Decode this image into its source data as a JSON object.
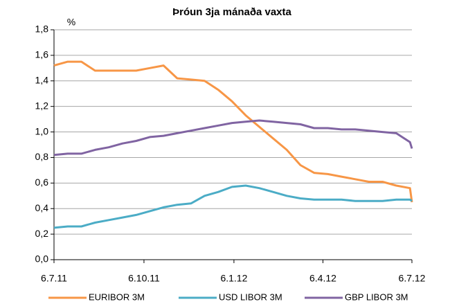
{
  "chart_data": {
    "type": "line",
    "title": "Þróun 3ja mánaða vaxta",
    "y_label": "%",
    "x": [
      "2011-07-06",
      "2011-07-20",
      "2011-08-03",
      "2011-08-17",
      "2011-08-31",
      "2011-09-14",
      "2011-09-28",
      "2011-10-12",
      "2011-10-26",
      "2011-11-09",
      "2011-11-23",
      "2011-12-07",
      "2011-12-21",
      "2012-01-04",
      "2012-01-18",
      "2012-02-01",
      "2012-02-15",
      "2012-02-29",
      "2012-03-14",
      "2012-03-28",
      "2012-04-11",
      "2012-04-25",
      "2012-05-09",
      "2012-05-23",
      "2012-06-06",
      "2012-06-20",
      "2012-07-04",
      "2012-07-06"
    ],
    "series": [
      {
        "name": "EURIBOR 3M",
        "color": "#f79646",
        "values": [
          1.52,
          1.55,
          1.55,
          1.48,
          1.48,
          1.48,
          1.48,
          1.5,
          1.52,
          1.42,
          1.41,
          1.4,
          1.33,
          1.24,
          1.13,
          1.04,
          0.95,
          0.86,
          0.74,
          0.68,
          0.67,
          0.65,
          0.63,
          0.61,
          0.61,
          0.58,
          0.56,
          0.45
        ]
      },
      {
        "name": "USD LIBOR 3M",
        "color": "#4bacc6",
        "values": [
          0.25,
          0.26,
          0.26,
          0.29,
          0.31,
          0.33,
          0.35,
          0.38,
          0.41,
          0.43,
          0.44,
          0.5,
          0.53,
          0.57,
          0.58,
          0.56,
          0.53,
          0.5,
          0.48,
          0.47,
          0.47,
          0.47,
          0.46,
          0.46,
          0.46,
          0.47,
          0.47,
          0.46
        ]
      },
      {
        "name": "GBP LIBOR 3M",
        "color": "#8064a2",
        "values": [
          0.82,
          0.83,
          0.83,
          0.86,
          0.88,
          0.91,
          0.93,
          0.96,
          0.97,
          0.99,
          1.01,
          1.03,
          1.05,
          1.07,
          1.08,
          1.09,
          1.08,
          1.07,
          1.06,
          1.03,
          1.03,
          1.02,
          1.02,
          1.01,
          1.0,
          0.99,
          0.92,
          0.87
        ]
      }
    ],
    "xlim": [
      "2011-07-06",
      "2012-07-06"
    ],
    "xticks": [
      {
        "value": "2011-07-06",
        "label": "6.7.11"
      },
      {
        "value": "2011-10-06",
        "label": "6.10.11"
      },
      {
        "value": "2012-01-06",
        "label": "6.1.12"
      },
      {
        "value": "2012-04-06",
        "label": "6.4.12"
      },
      {
        "value": "2012-07-06",
        "label": "6.7.12"
      }
    ],
    "ylim": [
      0,
      1.8
    ],
    "yticks": [
      {
        "value": 0,
        "label": "0,0"
      },
      {
        "value": 0.2,
        "label": "0,2"
      },
      {
        "value": 0.4,
        "label": "0,4"
      },
      {
        "value": 0.6,
        "label": "0,6"
      },
      {
        "value": 0.8,
        "label": "0,8"
      },
      {
        "value": 1.0,
        "label": "1,0"
      },
      {
        "value": 1.2,
        "label": "1,2"
      },
      {
        "value": 1.4,
        "label": "1,4"
      },
      {
        "value": 1.6,
        "label": "1,6"
      },
      {
        "value": 1.8,
        "label": "1,8"
      }
    ],
    "grid": true,
    "legend": "bottom"
  }
}
